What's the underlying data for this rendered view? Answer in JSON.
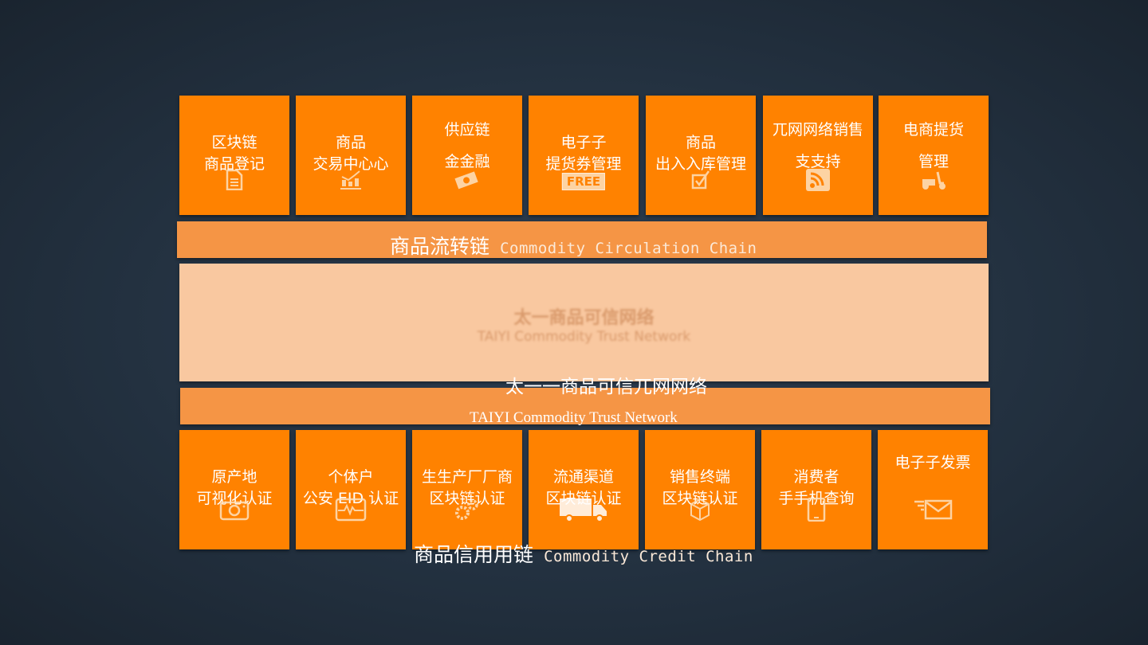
{
  "colors": {
    "tile": "#ff8200",
    "band": "#f59545",
    "panel": "#f9c8a0",
    "background": "#233140"
  },
  "top_tiles": [
    {
      "line1": "区块链",
      "line2": "商品登记",
      "icon": "document-icon",
      "layout": "a"
    },
    {
      "line1": "商品",
      "line2": "交易中心心",
      "icon": "chart-icon",
      "layout": "a"
    },
    {
      "line1": "供应链",
      "line2": "金金融",
      "icon": "money-icon",
      "layout": "b"
    },
    {
      "line1": "电子子",
      "line2": "提货券管理",
      "icon": "free-tag-icon",
      "icon_text": "FREE",
      "layout": "a"
    },
    {
      "line1": "商品",
      "line2": "出入入库管理",
      "icon": "checkbox-icon",
      "layout": "a"
    },
    {
      "line1": "兀网网络销售",
      "line2": "支支持",
      "icon": "rss-icon",
      "layout": "b"
    },
    {
      "line1": "电商提货",
      "line2": "管理",
      "icon": "scooter-icon",
      "layout": "b"
    }
  ],
  "circulation_band": {
    "zh": "商品流转链",
    "en": "Commodity Circulation Chain"
  },
  "trust_network": {
    "ghost_zh": "太一商品可信网络",
    "ghost_en": "TAIYI Commodity Trust Network",
    "zh": "太一一商品可信兀网网络",
    "en": "TAIYI Commodity Trust Network"
  },
  "bottom_tiles": [
    {
      "line1": "原产地",
      "line2": "可视化认证",
      "icon": "camera-icon",
      "layout": "c"
    },
    {
      "line1": "个体户",
      "line2": "公安 EID 认证",
      "icon": "heartbeat-icon",
      "layout": "c"
    },
    {
      "line1": "生生产厂厂商",
      "line2": "区块链认证",
      "icon": "gears-icon",
      "layout": "c"
    },
    {
      "line1": "流通渠道",
      "line2": "区块链认证",
      "icon": "truck-icon",
      "layout": "c"
    },
    {
      "line1": "销售终端",
      "line2": "区块链认证",
      "icon": "box-icon",
      "layout": "c"
    },
    {
      "line1": "消费者",
      "line2": "手手机查询",
      "icon": "tablet-icon",
      "layout": "c"
    },
    {
      "line1": "电子子发票",
      "line2": "",
      "icon": "mail-icon",
      "layout": "d"
    }
  ],
  "credit_chain": {
    "zh": "商品信用用链",
    "en": "Commodity Credit Chain"
  }
}
